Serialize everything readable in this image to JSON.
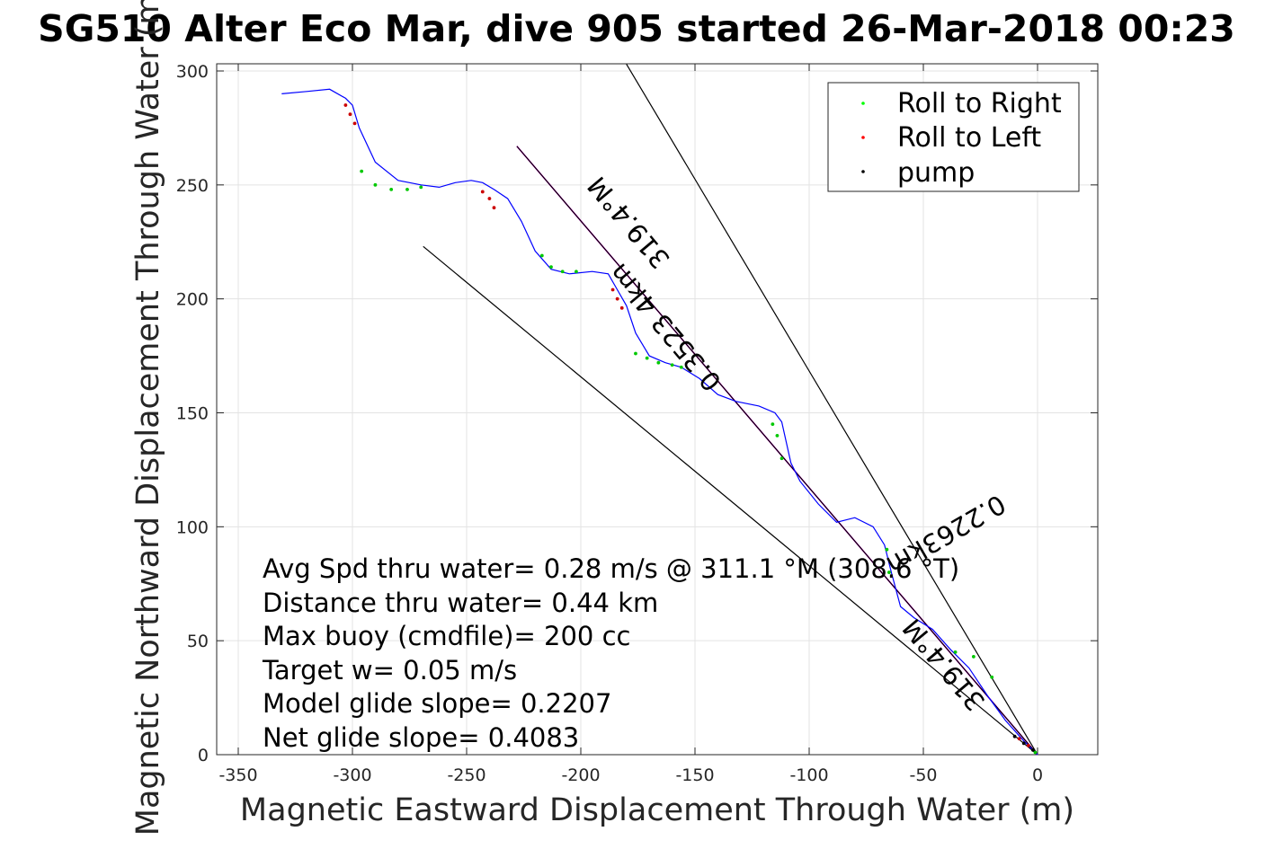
{
  "chart_data": {
    "type": "line",
    "title": "SG510 Alter Eco Mar, dive 905 started 26-Mar-2018 00:23",
    "xlabel": "Magnetic Eastward Displacement Through Water (m)",
    "ylabel": "Magnetic Northward Displacement Through Water (m)",
    "xlim": [
      -350,
      25
    ],
    "ylim": [
      0,
      300
    ],
    "xticks": [
      -350,
      -300,
      -250,
      -200,
      -150,
      -100,
      -50,
      0
    ],
    "yticks": [
      0,
      50,
      100,
      150,
      200,
      250,
      300
    ],
    "grid": true,
    "legend_position": "top-right",
    "legend": [
      {
        "label": "Roll to Right",
        "color": "#00ff00"
      },
      {
        "label": "Roll to Left",
        "color": "#ff0000"
      },
      {
        "label": "pump",
        "color": "#000000"
      }
    ],
    "track": {
      "color": "#0000ff",
      "x": [
        0,
        -6,
        -14,
        -22,
        -30,
        -38,
        -46,
        -54,
        -60,
        -64,
        -67,
        -72,
        -80,
        -88,
        -96,
        -104,
        -108,
        -110,
        -112,
        -115,
        -122,
        -132,
        -140,
        -148,
        -156,
        -163,
        -170,
        -176,
        -180,
        -184,
        -188,
        -195,
        -205,
        -213,
        -220,
        -226,
        -232,
        -238,
        -243,
        -248,
        -255,
        -262,
        -270,
        -280,
        -290,
        -297,
        -300,
        -303,
        -310,
        -320,
        -331
      ],
      "y": [
        0,
        6,
        15,
        26,
        38,
        46,
        55,
        60,
        65,
        80,
        92,
        100,
        104,
        102,
        110,
        120,
        128,
        137,
        146,
        150,
        153,
        155,
        158,
        165,
        170,
        172,
        175,
        185,
        197,
        204,
        211,
        212,
        211,
        213,
        221,
        234,
        244,
        248,
        251,
        252,
        251,
        249,
        250,
        252,
        260,
        275,
        285,
        288,
        292,
        291,
        290
      ]
    },
    "roll_to_right_points": {
      "x": [
        -1,
        -20,
        -28,
        -36,
        -65,
        -66,
        -112,
        -114,
        -116,
        -156,
        -160,
        -166,
        -171,
        -176,
        -217,
        -213,
        -208,
        -202,
        -270,
        -276,
        -283,
        -290,
        -296
      ],
      "y": [
        1,
        34,
        43,
        45,
        80,
        90,
        130,
        140,
        145,
        170,
        171,
        172,
        174,
        176,
        219,
        214,
        212,
        212,
        249,
        248,
        248,
        250,
        256
      ]
    },
    "roll_to_left_points": {
      "x": [
        -4,
        -8,
        -186,
        -184,
        -182,
        -243,
        -240,
        -238,
        -303,
        -301,
        -299
      ],
      "y": [
        4,
        7,
        204,
        200,
        196,
        247,
        244,
        240,
        285,
        281,
        277
      ]
    },
    "pump_points": {
      "x": [
        -2,
        -6,
        -10
      ],
      "y": [
        2,
        5,
        8
      ]
    },
    "reference_lines": [
      {
        "color": "#000000",
        "x": [
          0,
          -269
        ],
        "y": [
          0,
          223
        ]
      },
      {
        "color": "#000000",
        "x": [
          0,
          -180
        ],
        "y": [
          0,
          303
        ]
      },
      {
        "color": "#ff00ff",
        "x": [
          0,
          -228
        ],
        "y": [
          0,
          267
        ]
      },
      {
        "color": "#000000",
        "x": [
          0,
          -228
        ],
        "y": [
          0,
          267
        ]
      }
    ],
    "annotations": [
      {
        "text": "319.4°M",
        "x": -176,
        "y": 236,
        "rotation_deg": 50
      },
      {
        "text": "319.4°M",
        "x": -38,
        "y": 42,
        "rotation_deg": 50
      },
      {
        "text": "0.2263km",
        "x": -42,
        "y": 100,
        "rotation_deg": -30
      },
      {
        "text": "0.3523 4km",
        "x": -160,
        "y": 190,
        "rotation_deg": 50
      }
    ]
  },
  "stats": {
    "lines": [
      "Avg Spd thru water=  0.28 m/s @ 311.1 °M (308.6 °T)",
      "Distance thru water=  0.44 km",
      "Max buoy (cmdfile)= 200 cc",
      "Target w= 0.05 m/s",
      "Model glide slope= 0.2207",
      "Net glide slope= 0.4083"
    ]
  }
}
